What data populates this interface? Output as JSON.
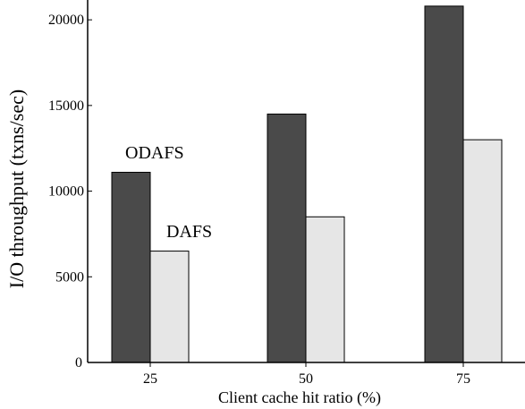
{
  "chart_data": {
    "type": "bar",
    "xlabel": "Client cache hit ratio (%)",
    "ylabel": "I/O throughput (txns/sec)",
    "categories": [
      "25",
      "50",
      "75"
    ],
    "ylim": [
      0,
      21000
    ],
    "yticks": [
      0,
      5000,
      10000,
      15000,
      20000
    ],
    "ytick_labels": [
      "0",
      "5000",
      "10000",
      "15000",
      "20000"
    ],
    "grid": false,
    "legend": "none",
    "series": [
      {
        "name": "ODAFS",
        "values": [
          11100,
          14500,
          20800
        ],
        "color": "#4a4a4a"
      },
      {
        "name": "DAFS",
        "values": [
          6500,
          8500,
          13000
        ],
        "color": "#e6e6e6"
      }
    ]
  }
}
